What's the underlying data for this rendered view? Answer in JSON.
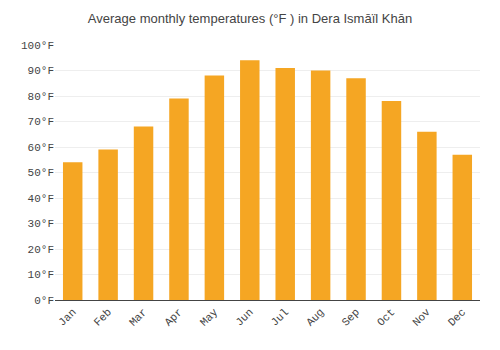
{
  "chart_data": {
    "type": "bar",
    "title": "Average monthly temperatures (°F ) in Dera Ismāïl Khān",
    "categories": [
      "Jan",
      "Feb",
      "Mar",
      "Apr",
      "May",
      "Jun",
      "Jul",
      "Aug",
      "Sep",
      "Oct",
      "Nov",
      "Dec"
    ],
    "values": [
      54,
      59,
      68,
      79,
      88,
      94,
      91,
      90,
      87,
      78,
      66,
      57
    ],
    "color": "#F5A623",
    "ylim": [
      0,
      100
    ],
    "yticks": [
      {
        "value": 0,
        "label": "0°F"
      },
      {
        "value": 10,
        "label": "10°F"
      },
      {
        "value": 20,
        "label": "20°F"
      },
      {
        "value": 30,
        "label": "30°F"
      },
      {
        "value": 40,
        "label": "40°F"
      },
      {
        "value": 50,
        "label": "50°F"
      },
      {
        "value": 60,
        "label": "60°F"
      },
      {
        "value": 70,
        "label": "70°F"
      },
      {
        "value": 80,
        "label": "80°F"
      },
      {
        "value": 90,
        "label": "90°F"
      },
      {
        "value": 100,
        "label": "100°F"
      }
    ],
    "grid": true
  }
}
